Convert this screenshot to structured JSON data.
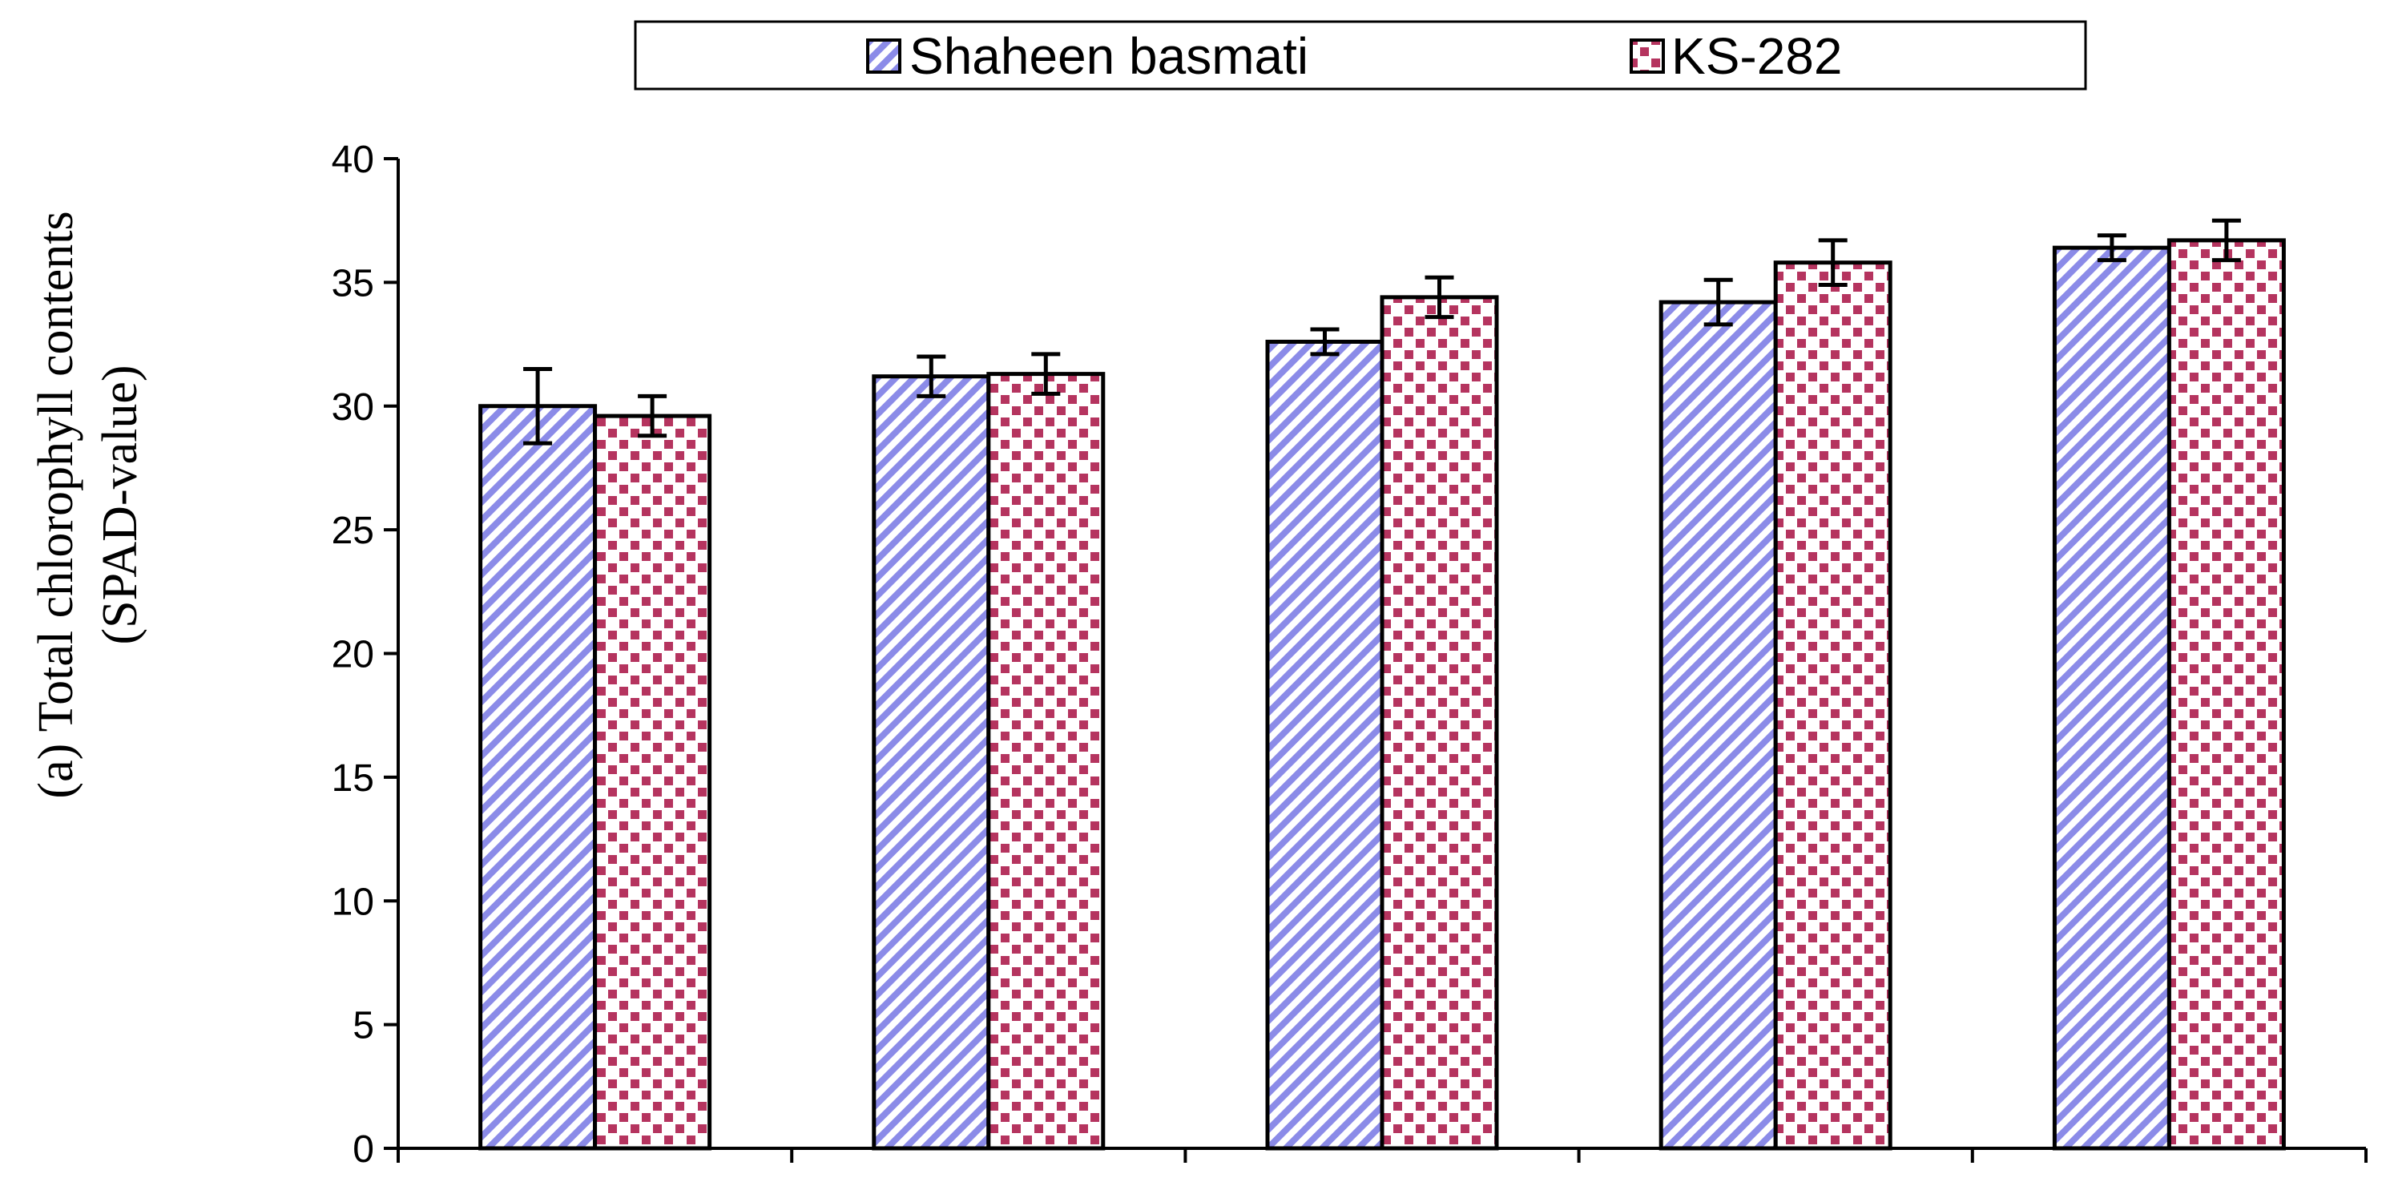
{
  "chart_data": {
    "type": "bar",
    "title": "",
    "xlabel": "",
    "ylabel": "(a) Total chlorophyll contents",
    "ylabel_line2": "(SPAD-value)",
    "ylim": [
      0,
      40
    ],
    "yticks": [
      0,
      5,
      10,
      15,
      20,
      25,
      30,
      35,
      40
    ],
    "categories": [
      "",
      "",
      "",
      "",
      ""
    ],
    "legend_position": "top",
    "grid": false,
    "series": [
      {
        "name": "Shaheen basmati",
        "color": "#8b8be8",
        "pattern": "diagonal-stripes",
        "values": [
          30.0,
          31.2,
          32.6,
          34.2,
          36.4
        ],
        "errors": [
          1.5,
          0.8,
          0.5,
          0.9,
          0.5
        ]
      },
      {
        "name": "KS-282",
        "color": "#b5345f",
        "pattern": "checker",
        "values": [
          29.6,
          31.3,
          34.4,
          35.8,
          36.7
        ],
        "errors": [
          0.8,
          0.8,
          0.8,
          0.9,
          0.8
        ]
      }
    ]
  }
}
